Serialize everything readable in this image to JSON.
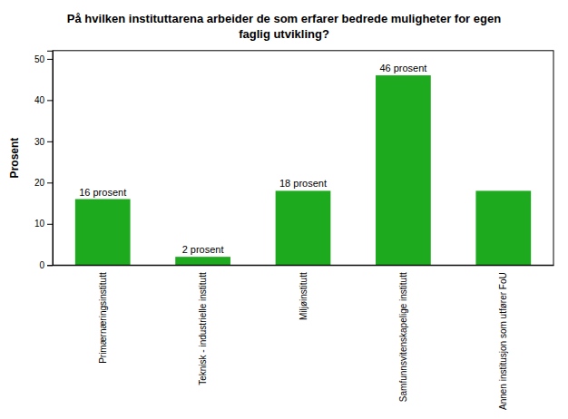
{
  "chart_data": {
    "type": "bar",
    "title": "På hvilken instituttarena arbeider de som erfarer bedrede muligheter for egen\nfaglig utvikling?",
    "categories": [
      "Primærnæringsinstitutt",
      "Teknisk - industrielle institutt",
      "Miljøinstitutt",
      "Samfunnsvitenskapelige institutt",
      "Annen institusjon som utfører FoU"
    ],
    "values": [
      16,
      2,
      18,
      46,
      18
    ],
    "value_labels": [
      "16 prosent",
      "2 prosent",
      "18 prosent",
      "46 prosent",
      null
    ],
    "data_labels": true,
    "color": "#1EAA1E",
    "ylabel": "Prosent",
    "ylim": [
      0,
      52
    ],
    "yticks": [
      0,
      10,
      20,
      30,
      40,
      50
    ],
    "grid": false
  }
}
